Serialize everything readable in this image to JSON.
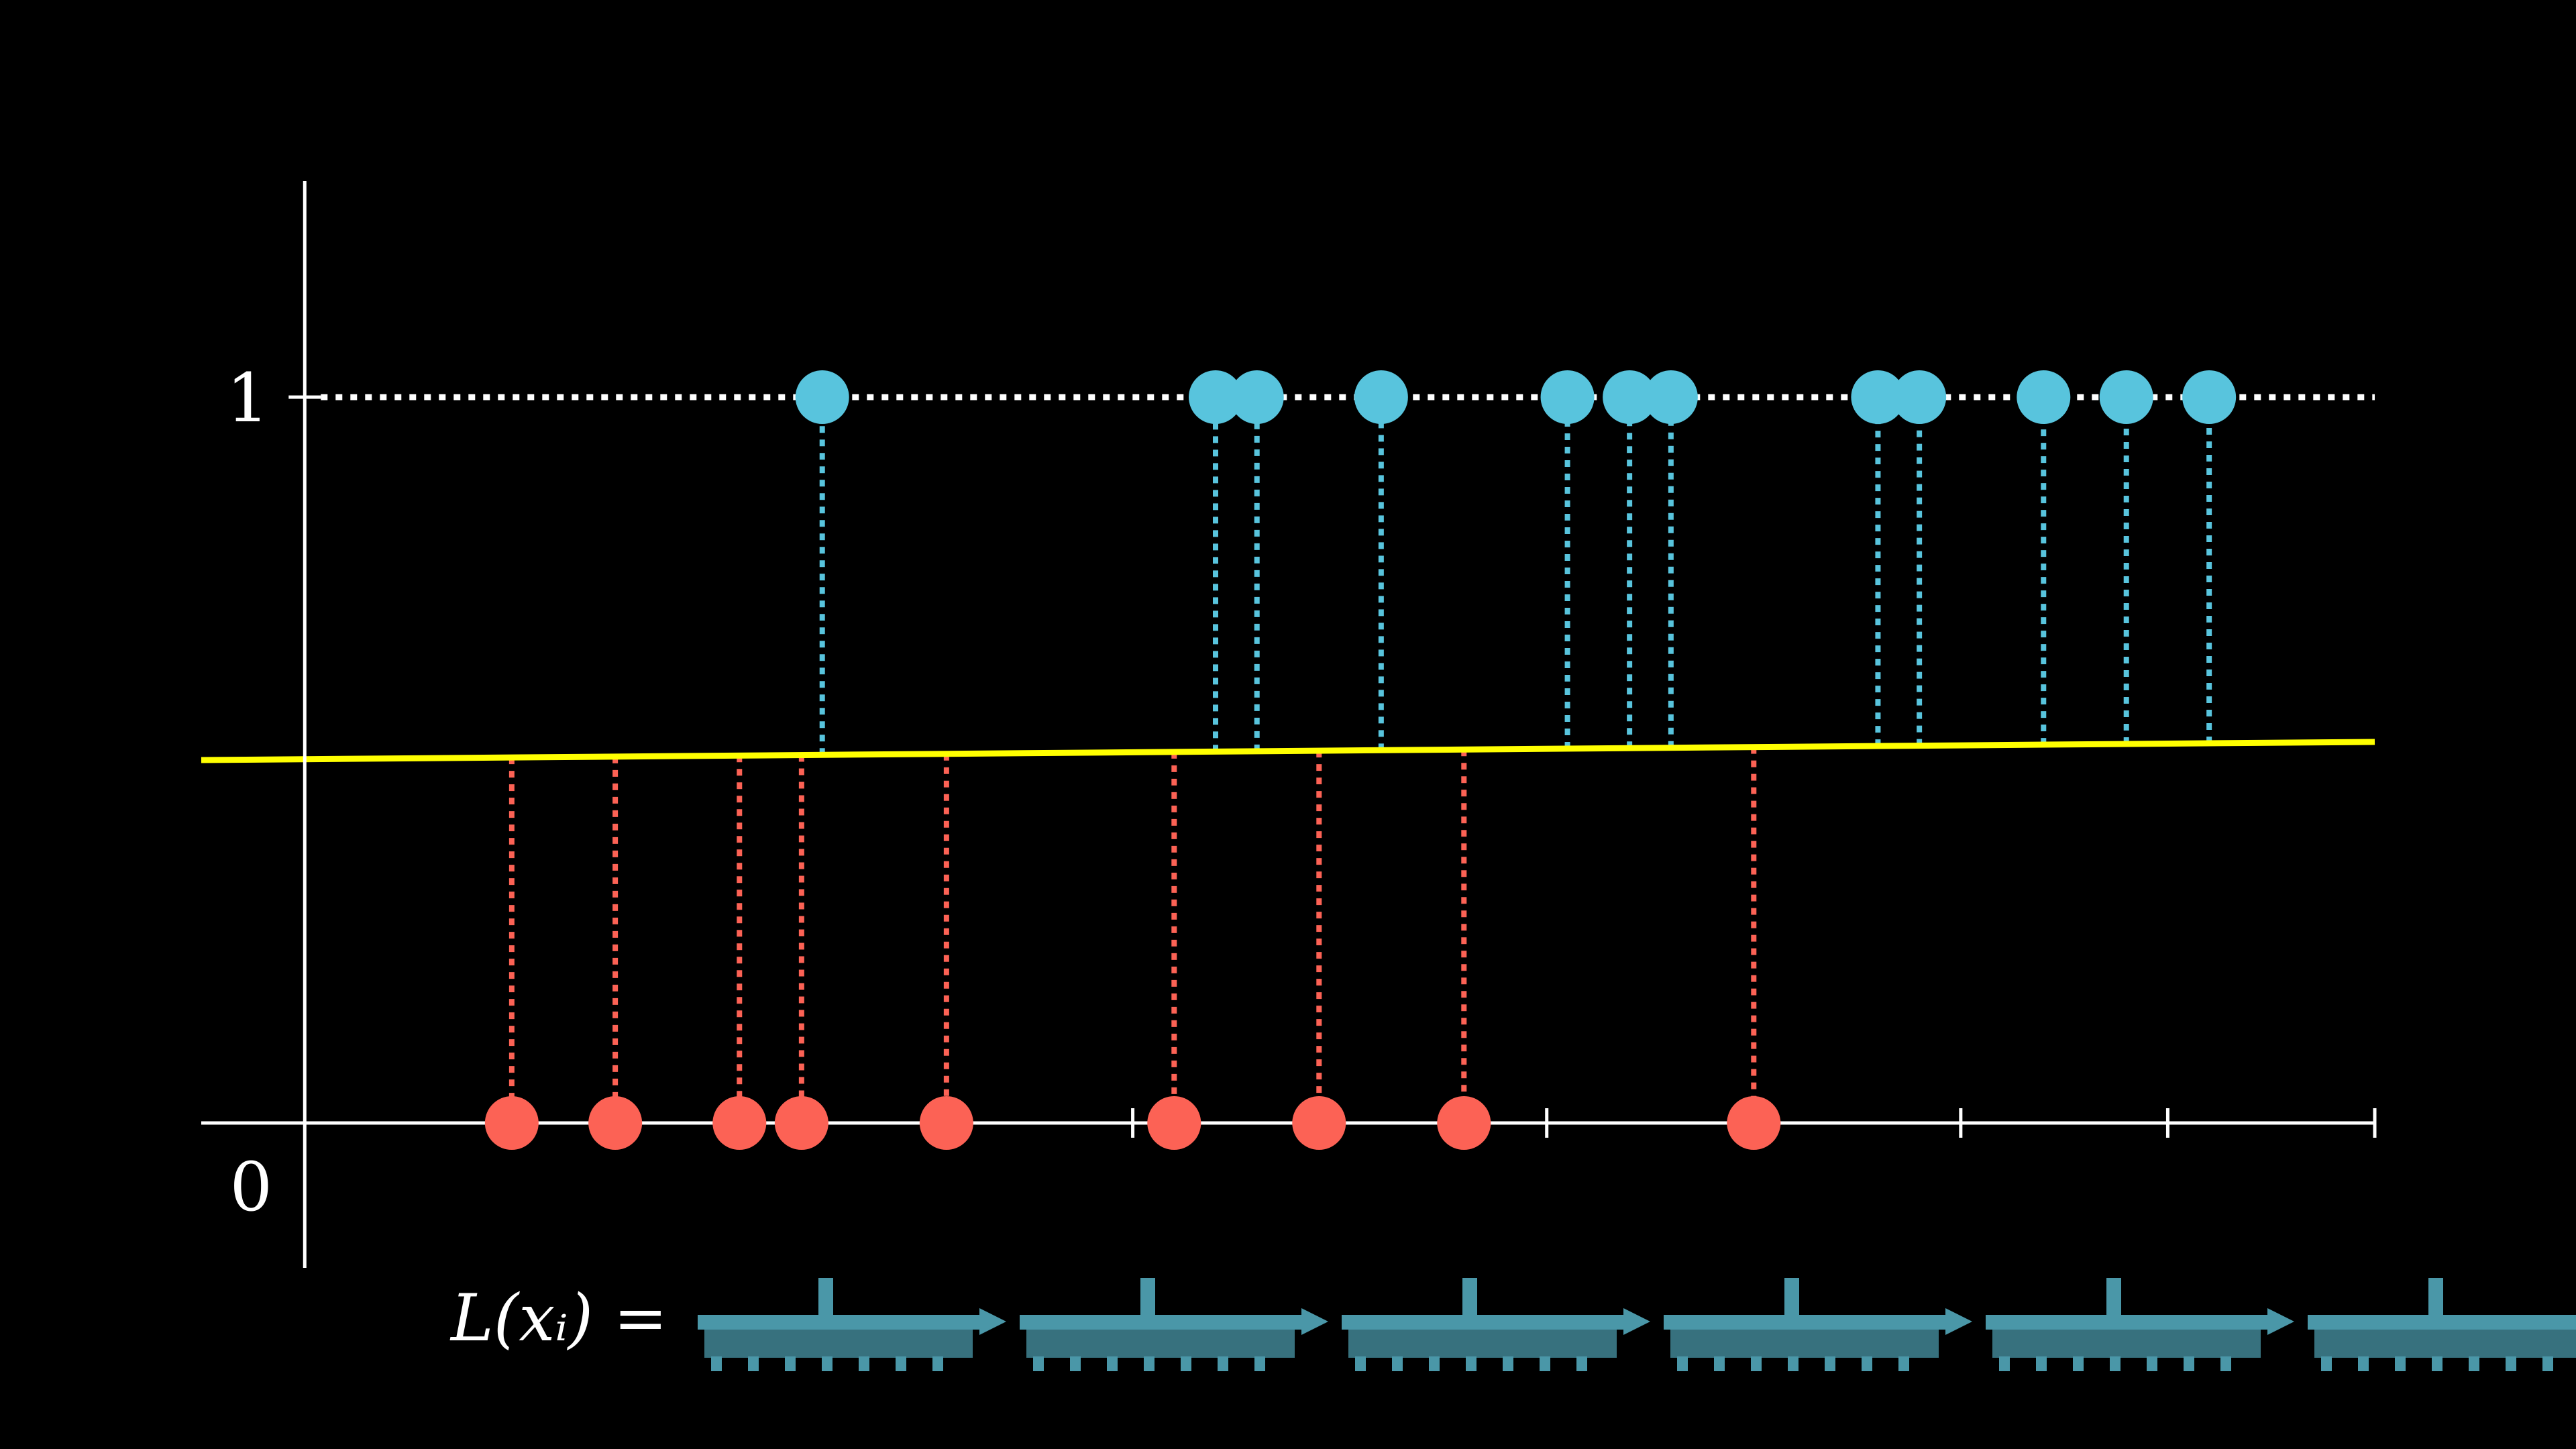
{
  "colors": {
    "background": "#000000",
    "axis": "#ffffff",
    "positive": "#58c4dd",
    "negative": "#fc6255",
    "fit_line": "#ffff00",
    "formula_glyph": "#4a97a8"
  },
  "chart_data": {
    "type": "scatter",
    "title": "",
    "xlabel": "",
    "ylabel": "",
    "xlim": [
      -0.5,
      10
    ],
    "ylim": [
      0,
      1
    ],
    "x_ticks": [
      4,
      6,
      8,
      9,
      10
    ],
    "y_tick_labels": [
      "0",
      "1"
    ],
    "guide_at_y1": "dotted",
    "series": [
      {
        "marker": "circle",
        "y": 0,
        "x": [
          1.0,
          1.5,
          2.1,
          2.4,
          3.1,
          4.2,
          4.9,
          5.6,
          7.0
        ]
      },
      {
        "marker": "circle",
        "y": 1,
        "x": [
          2.5,
          4.4,
          4.6,
          5.2,
          6.1,
          6.4,
          6.6,
          7.6,
          7.8,
          8.4,
          8.8,
          9.2
        ]
      }
    ],
    "fit_line": {
      "x": [
        -0.5,
        10
      ],
      "y": [
        0.5,
        0.525
      ]
    }
  },
  "formula": {
    "lhs": "L(xᵢ) =",
    "term_glyphs": 6
  }
}
